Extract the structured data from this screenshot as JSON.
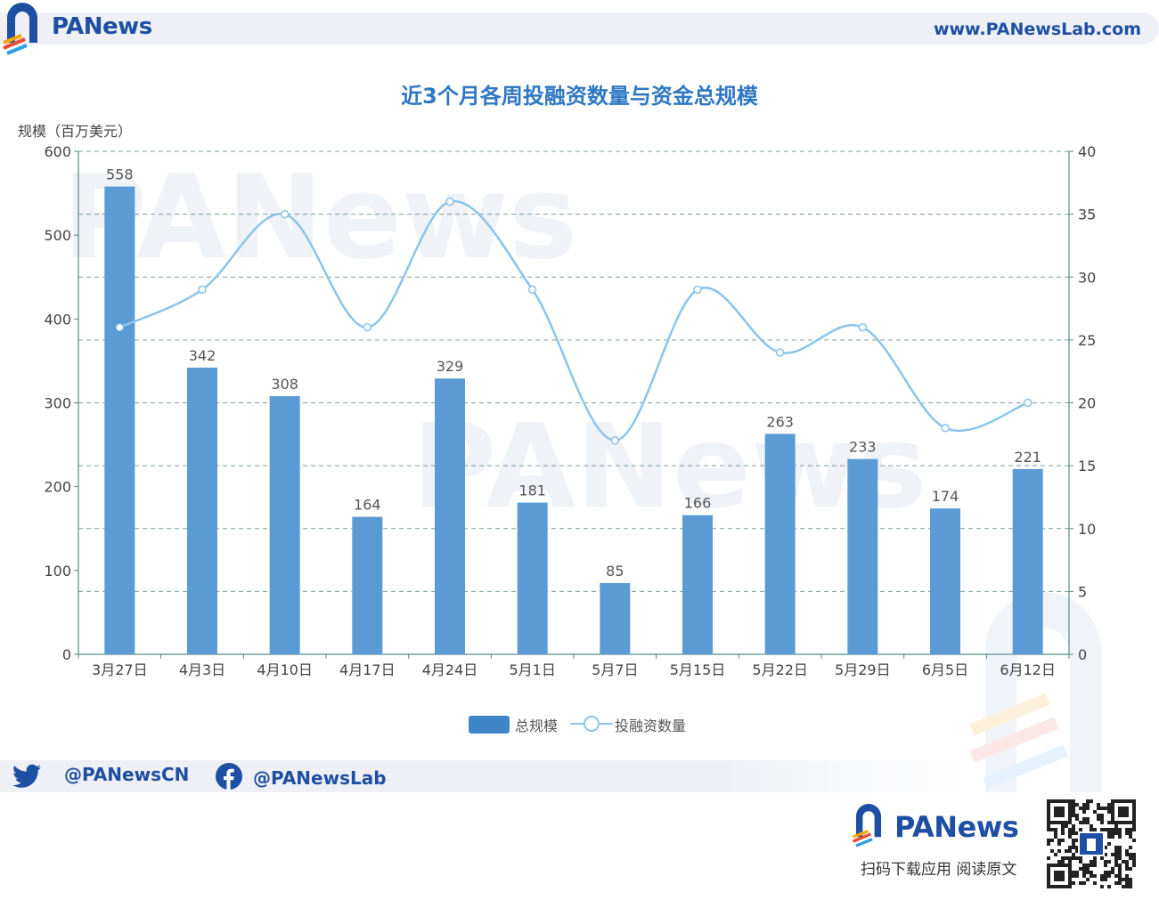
{
  "header": {
    "brand": "PANews",
    "site_url": "www.PANewsLab.com"
  },
  "chart_data": {
    "type": "bar",
    "title": "近3个月各周投融资数量与资金总规模",
    "ylabel": "规模（百万美元）",
    "y2label": "",
    "categories": [
      "3月27日",
      "4月3日",
      "4月10日",
      "4月17日",
      "4月24日",
      "5月1日",
      "5月7日",
      "5月15日",
      "5月22日",
      "5月29日",
      "6月5日",
      "6月12日"
    ],
    "series": [
      {
        "name": "总规模",
        "type": "bar",
        "axis": "left",
        "color": "#5b9bd5",
        "values": [
          558,
          342,
          308,
          164,
          329,
          181,
          85,
          166,
          263,
          233,
          174,
          221
        ]
      },
      {
        "name": "投融资数量",
        "type": "line",
        "axis": "right",
        "color": "#8cc4ea",
        "values": [
          26,
          29,
          35,
          26,
          36,
          29,
          17,
          29,
          24,
          26,
          18,
          20
        ]
      }
    ],
    "ylim": [
      0,
      600
    ],
    "yticks": [
      0,
      100,
      200,
      300,
      400,
      500,
      600
    ],
    "y2lim": [
      0,
      40
    ],
    "y2ticks": [
      0,
      5,
      10,
      15,
      20,
      25,
      30,
      35,
      40
    ],
    "grid": true,
    "legend_position": "bottom-center",
    "data_labels": true
  },
  "footer": {
    "twitter_handle": "@PANewsCN",
    "facebook_handle": "@PANewsLab",
    "brand": "PANews",
    "cta": "扫码下载应用  阅读原文"
  },
  "icons": {
    "logo": "panews-logo-icon",
    "twitter": "twitter-icon",
    "facebook": "facebook-icon",
    "qr": "qr-code-icon"
  },
  "colors": {
    "brand_blue": "#1e4fa3",
    "title_blue": "#2f78c4",
    "bar": "#5b9bd5",
    "line": "#8cc4ea",
    "axis": "#5a8a8a"
  }
}
